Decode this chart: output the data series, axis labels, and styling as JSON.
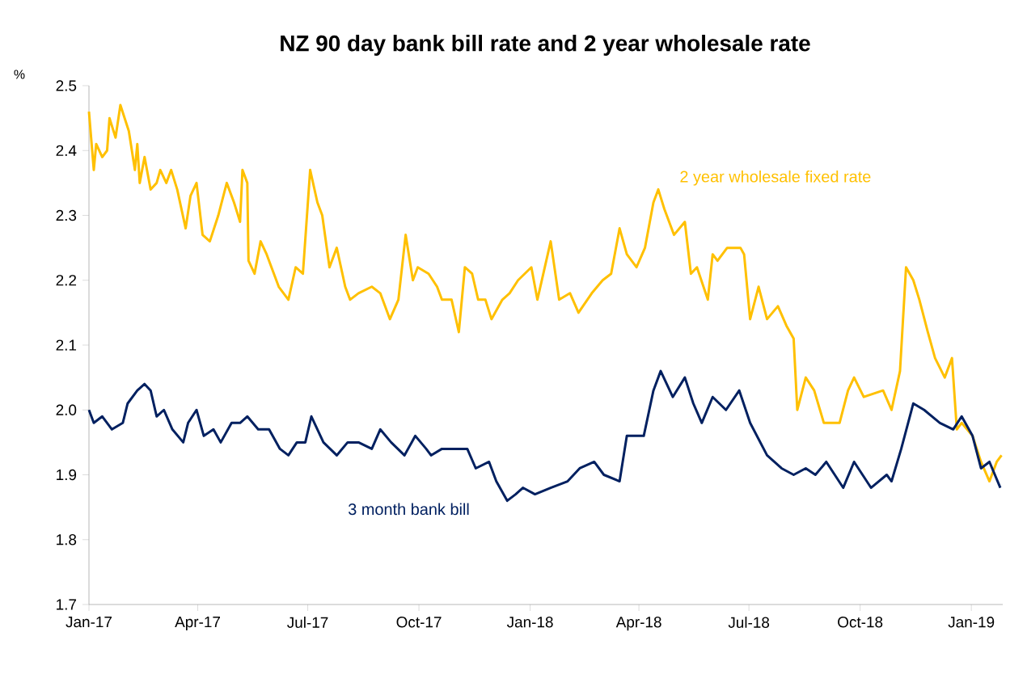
{
  "chart_data": {
    "type": "line",
    "title": "NZ 90 day bank bill rate and 2 year wholesale rate",
    "ylabel": "%",
    "xlim": [
      "2017-01-01",
      "2019-01-27"
    ],
    "ylim": [
      1.7,
      2.5
    ],
    "yticks": [
      1.7,
      1.8,
      1.9,
      {
        "value": 2,
        "label": "2.0"
      },
      2.1,
      2.2,
      2.3,
      2.4,
      2.5
    ],
    "xticks": [
      {
        "value": "2017-01-01",
        "label": "Jan-17"
      },
      {
        "value": "2017-04-01",
        "label": "Apr-17"
      },
      {
        "value": "2017-07-01",
        "label": "Jul-17"
      },
      {
        "value": "2017-10-01",
        "label": "Oct-17"
      },
      {
        "value": "2018-01-01",
        "label": "Jan-18"
      },
      {
        "value": "2018-04-01",
        "label": "Apr-18"
      },
      {
        "value": "2018-07-01",
        "label": "Jul-18"
      },
      {
        "value": "2018-10-01",
        "label": "Oct-18"
      },
      {
        "value": "2019-01-01",
        "label": "Jan-19"
      }
    ],
    "grid": false,
    "legend": false,
    "series": [
      {
        "name": "2 year wholesale fixed rate",
        "color": "#ffc000",
        "x": [
          "2017-01-01",
          "2017-01-05",
          "2017-01-07",
          "2017-01-12",
          "2017-01-16",
          "2017-01-18",
          "2017-01-23",
          "2017-01-27",
          "2017-02-03",
          "2017-02-08",
          "2017-02-10",
          "2017-02-12",
          "2017-02-16",
          "2017-02-21",
          "2017-02-26",
          "2017-03-01",
          "2017-03-06",
          "2017-03-10",
          "2017-03-15",
          "2017-03-22",
          "2017-03-26",
          "2017-03-31",
          "2017-04-05",
          "2017-04-11",
          "2017-04-18",
          "2017-04-25",
          "2017-05-01",
          "2017-05-06",
          "2017-05-08",
          "2017-05-12",
          "2017-05-13",
          "2017-05-18",
          "2017-05-23",
          "2017-05-28",
          "2017-06-01",
          "2017-06-07",
          "2017-06-15",
          "2017-06-21",
          "2017-06-27",
          "2017-07-03",
          "2017-07-09",
          "2017-07-13",
          "2017-07-19",
          "2017-07-25",
          "2017-08-01",
          "2017-08-05",
          "2017-08-12",
          "2017-08-23",
          "2017-08-30",
          "2017-09-07",
          "2017-09-14",
          "2017-09-20",
          "2017-09-26",
          "2017-09-30",
          "2017-10-09",
          "2017-10-16",
          "2017-10-20",
          "2017-10-28",
          "2017-11-03",
          "2017-11-08",
          "2017-11-14",
          "2017-11-19",
          "2017-11-25",
          "2017-11-30",
          "2017-12-09",
          "2017-12-15",
          "2017-12-22",
          "2018-01-02",
          "2018-01-07",
          "2018-01-18",
          "2018-01-25",
          "2018-02-03",
          "2018-02-10",
          "2018-02-21",
          "2018-03-02",
          "2018-03-09",
          "2018-03-16",
          "2018-03-22",
          "2018-03-30",
          "2018-04-06",
          "2018-04-13",
          "2018-04-17",
          "2018-04-22",
          "2018-04-30",
          "2018-05-09",
          "2018-05-14",
          "2018-05-19",
          "2018-05-28",
          "2018-06-01",
          "2018-06-05",
          "2018-06-13",
          "2018-06-24",
          "2018-06-27",
          "2018-07-02",
          "2018-07-09",
          "2018-07-16",
          "2018-07-25",
          "2018-08-01",
          "2018-08-07",
          "2018-08-10",
          "2018-08-17",
          "2018-08-24",
          "2018-09-01",
          "2018-09-14",
          "2018-09-21",
          "2018-09-26",
          "2018-10-04",
          "2018-10-20",
          "2018-10-27",
          "2018-11-03",
          "2018-11-08",
          "2018-11-14",
          "2018-11-19",
          "2018-11-26",
          "2018-12-02",
          "2018-12-10",
          "2018-12-16",
          "2018-12-20",
          "2018-12-24",
          "2019-01-02",
          "2019-01-09",
          "2019-01-16",
          "2019-01-22",
          "2019-01-26"
        ],
        "values": [
          2.46,
          2.37,
          2.41,
          2.39,
          2.4,
          2.45,
          2.42,
          2.47,
          2.43,
          2.37,
          2.41,
          2.35,
          2.39,
          2.34,
          2.35,
          2.37,
          2.35,
          2.37,
          2.34,
          2.28,
          2.33,
          2.35,
          2.27,
          2.26,
          2.3,
          2.35,
          2.32,
          2.29,
          2.37,
          2.35,
          2.23,
          2.21,
          2.26,
          2.24,
          2.22,
          2.19,
          2.17,
          2.22,
          2.21,
          2.37,
          2.32,
          2.3,
          2.22,
          2.25,
          2.19,
          2.17,
          2.18,
          2.19,
          2.18,
          2.14,
          2.17,
          2.27,
          2.2,
          2.22,
          2.21,
          2.19,
          2.17,
          2.17,
          2.12,
          2.22,
          2.21,
          2.17,
          2.17,
          2.14,
          2.17,
          2.18,
          2.2,
          2.22,
          2.17,
          2.26,
          2.17,
          2.18,
          2.15,
          2.18,
          2.2,
          2.21,
          2.28,
          2.24,
          2.22,
          2.25,
          2.32,
          2.34,
          2.31,
          2.27,
          2.29,
          2.21,
          2.22,
          2.17,
          2.24,
          2.23,
          2.25,
          2.25,
          2.24,
          2.14,
          2.19,
          2.14,
          2.16,
          2.13,
          2.11,
          2.0,
          2.05,
          2.03,
          1.98,
          1.98,
          2.03,
          2.05,
          2.02,
          2.03,
          2.0,
          2.06,
          2.22,
          2.2,
          2.17,
          2.12,
          2.08,
          2.05,
          2.08,
          1.97,
          1.98,
          1.96,
          1.92,
          1.89,
          1.92,
          1.93
        ]
      },
      {
        "name": "3 month bank bill",
        "color": "#002060",
        "x": [
          "2017-01-01",
          "2017-01-05",
          "2017-01-12",
          "2017-01-16",
          "2017-01-20",
          "2017-01-29",
          "2017-02-02",
          "2017-02-10",
          "2017-02-16",
          "2017-02-21",
          "2017-02-26",
          "2017-03-04",
          "2017-03-11",
          "2017-03-20",
          "2017-03-24",
          "2017-03-31",
          "2017-04-06",
          "2017-04-14",
          "2017-04-20",
          "2017-04-29",
          "2017-05-06",
          "2017-05-12",
          "2017-05-21",
          "2017-05-30",
          "2017-06-08",
          "2017-06-15",
          "2017-06-22",
          "2017-06-29",
          "2017-07-04",
          "2017-07-14",
          "2017-07-25",
          "2017-08-03",
          "2017-08-12",
          "2017-08-23",
          "2017-08-30",
          "2017-09-08",
          "2017-09-19",
          "2017-09-28",
          "2017-10-07",
          "2017-10-11",
          "2017-10-20",
          "2017-11-03",
          "2017-11-10",
          "2017-11-17",
          "2017-11-28",
          "2017-12-04",
          "2017-12-13",
          "2017-12-20",
          "2017-12-26",
          "2018-01-05",
          "2018-01-18",
          "2018-02-01",
          "2018-02-11",
          "2018-02-23",
          "2018-03-03",
          "2018-03-16",
          "2018-03-22",
          "2018-04-05",
          "2018-04-13",
          "2018-04-19",
          "2018-04-29",
          "2018-05-09",
          "2018-05-16",
          "2018-05-23",
          "2018-06-01",
          "2018-06-12",
          "2018-06-23",
          "2018-07-02",
          "2018-07-16",
          "2018-07-28",
          "2018-08-07",
          "2018-08-17",
          "2018-08-25",
          "2018-09-03",
          "2018-09-17",
          "2018-09-26",
          "2018-10-10",
          "2018-10-23",
          "2018-10-27",
          "2018-11-04",
          "2018-11-14",
          "2018-11-23",
          "2018-12-06",
          "2018-12-17",
          "2018-12-24",
          "2019-01-02",
          "2019-01-09",
          "2019-01-16",
          "2019-01-25"
        ],
        "values": [
          2.0,
          1.98,
          1.99,
          1.98,
          1.97,
          1.98,
          2.01,
          2.03,
          2.04,
          2.03,
          1.99,
          2.0,
          1.97,
          1.95,
          1.98,
          2.0,
          1.96,
          1.97,
          1.95,
          1.98,
          1.98,
          1.99,
          1.97,
          1.97,
          1.94,
          1.93,
          1.95,
          1.95,
          1.99,
          1.95,
          1.93,
          1.95,
          1.95,
          1.94,
          1.97,
          1.95,
          1.93,
          1.96,
          1.94,
          1.93,
          1.94,
          1.94,
          1.94,
          1.91,
          1.92,
          1.89,
          1.86,
          1.87,
          1.88,
          1.87,
          1.88,
          1.89,
          1.91,
          1.92,
          1.9,
          1.89,
          1.96,
          1.96,
          2.03,
          2.06,
          2.02,
          2.05,
          2.01,
          1.98,
          2.02,
          2.0,
          2.03,
          1.98,
          1.93,
          1.91,
          1.9,
          1.91,
          1.9,
          1.92,
          1.88,
          1.92,
          1.88,
          1.9,
          1.89,
          1.94,
          2.01,
          2.0,
          1.98,
          1.97,
          1.99,
          1.96,
          1.91,
          1.92,
          1.88
        ]
      }
    ]
  }
}
